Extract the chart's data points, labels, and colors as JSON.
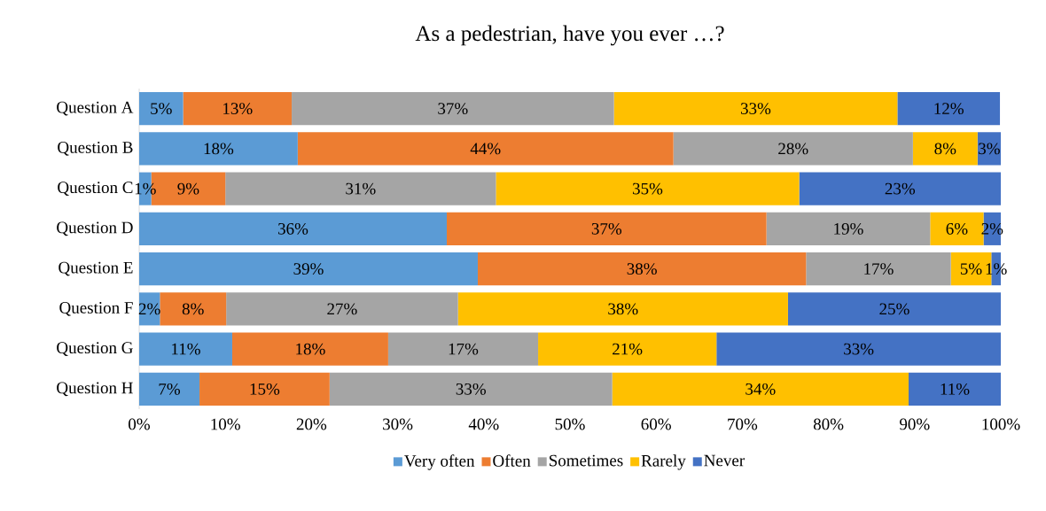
{
  "chart_data": {
    "type": "bar",
    "orientation": "horizontal",
    "stacked": true,
    "title": "As a pedestrian, have you ever …?",
    "categories": [
      "Question A",
      "Question B",
      "Question C",
      "Question D",
      "Question E",
      "Question F",
      "Question G",
      "Question H"
    ],
    "series": [
      {
        "name": "Very often",
        "color": "#5b9bd5",
        "values": [
          5.1,
          18.4,
          1.4,
          35.7,
          39.3,
          2.4,
          10.8,
          7.0
        ],
        "value_labels": [
          "5%",
          "18%",
          "1%",
          "36%",
          "39%",
          "2%",
          "11%",
          "7%"
        ]
      },
      {
        "name": "Often",
        "color": "#ed7d31",
        "values": [
          12.6,
          43.6,
          8.6,
          37.1,
          38.1,
          7.7,
          18.1,
          15.1
        ],
        "value_labels": [
          "13%",
          "44%",
          "9%",
          "37%",
          "38%",
          "8%",
          "18%",
          "15%"
        ]
      },
      {
        "name": "Sometimes",
        "color": "#a5a5a5",
        "values": [
          37.4,
          27.8,
          31.4,
          19.0,
          16.8,
          26.9,
          17.4,
          32.8
        ],
        "value_labels": [
          "37%",
          "28%",
          "31%",
          "19%",
          "17%",
          "27%",
          "17%",
          "33%"
        ]
      },
      {
        "name": "Rarely",
        "color": "#ffc000",
        "values": [
          32.9,
          7.5,
          35.2,
          6.2,
          4.7,
          38.3,
          20.7,
          34.4
        ],
        "value_labels": [
          "33%",
          "8%",
          "35%",
          "6%",
          "5%",
          "38%",
          "21%",
          "34%"
        ]
      },
      {
        "name": "Never",
        "color": "#4472c4",
        "values": [
          11.9,
          2.7,
          23.4,
          2.0,
          1.1,
          24.7,
          33.0,
          10.7
        ],
        "value_labels": [
          "12%",
          "3%",
          "23%",
          "2%",
          "1%",
          "25%",
          "33%",
          "11%"
        ]
      }
    ],
    "xlim": [
      0,
      100
    ],
    "xticks": [
      {
        "value": 0,
        "label": "0%"
      },
      {
        "value": 10,
        "label": "10%"
      },
      {
        "value": 20,
        "label": "20%"
      },
      {
        "value": 30,
        "label": "30%"
      },
      {
        "value": 40,
        "label": "40%"
      },
      {
        "value": 50,
        "label": "50%"
      },
      {
        "value": 60,
        "label": "60%"
      },
      {
        "value": 70,
        "label": "70%"
      },
      {
        "value": 80,
        "label": "80%"
      },
      {
        "value": 90,
        "label": "90%"
      },
      {
        "value": 100,
        "label": "100%"
      }
    ],
    "legend": "bottom",
    "grid": false
  }
}
